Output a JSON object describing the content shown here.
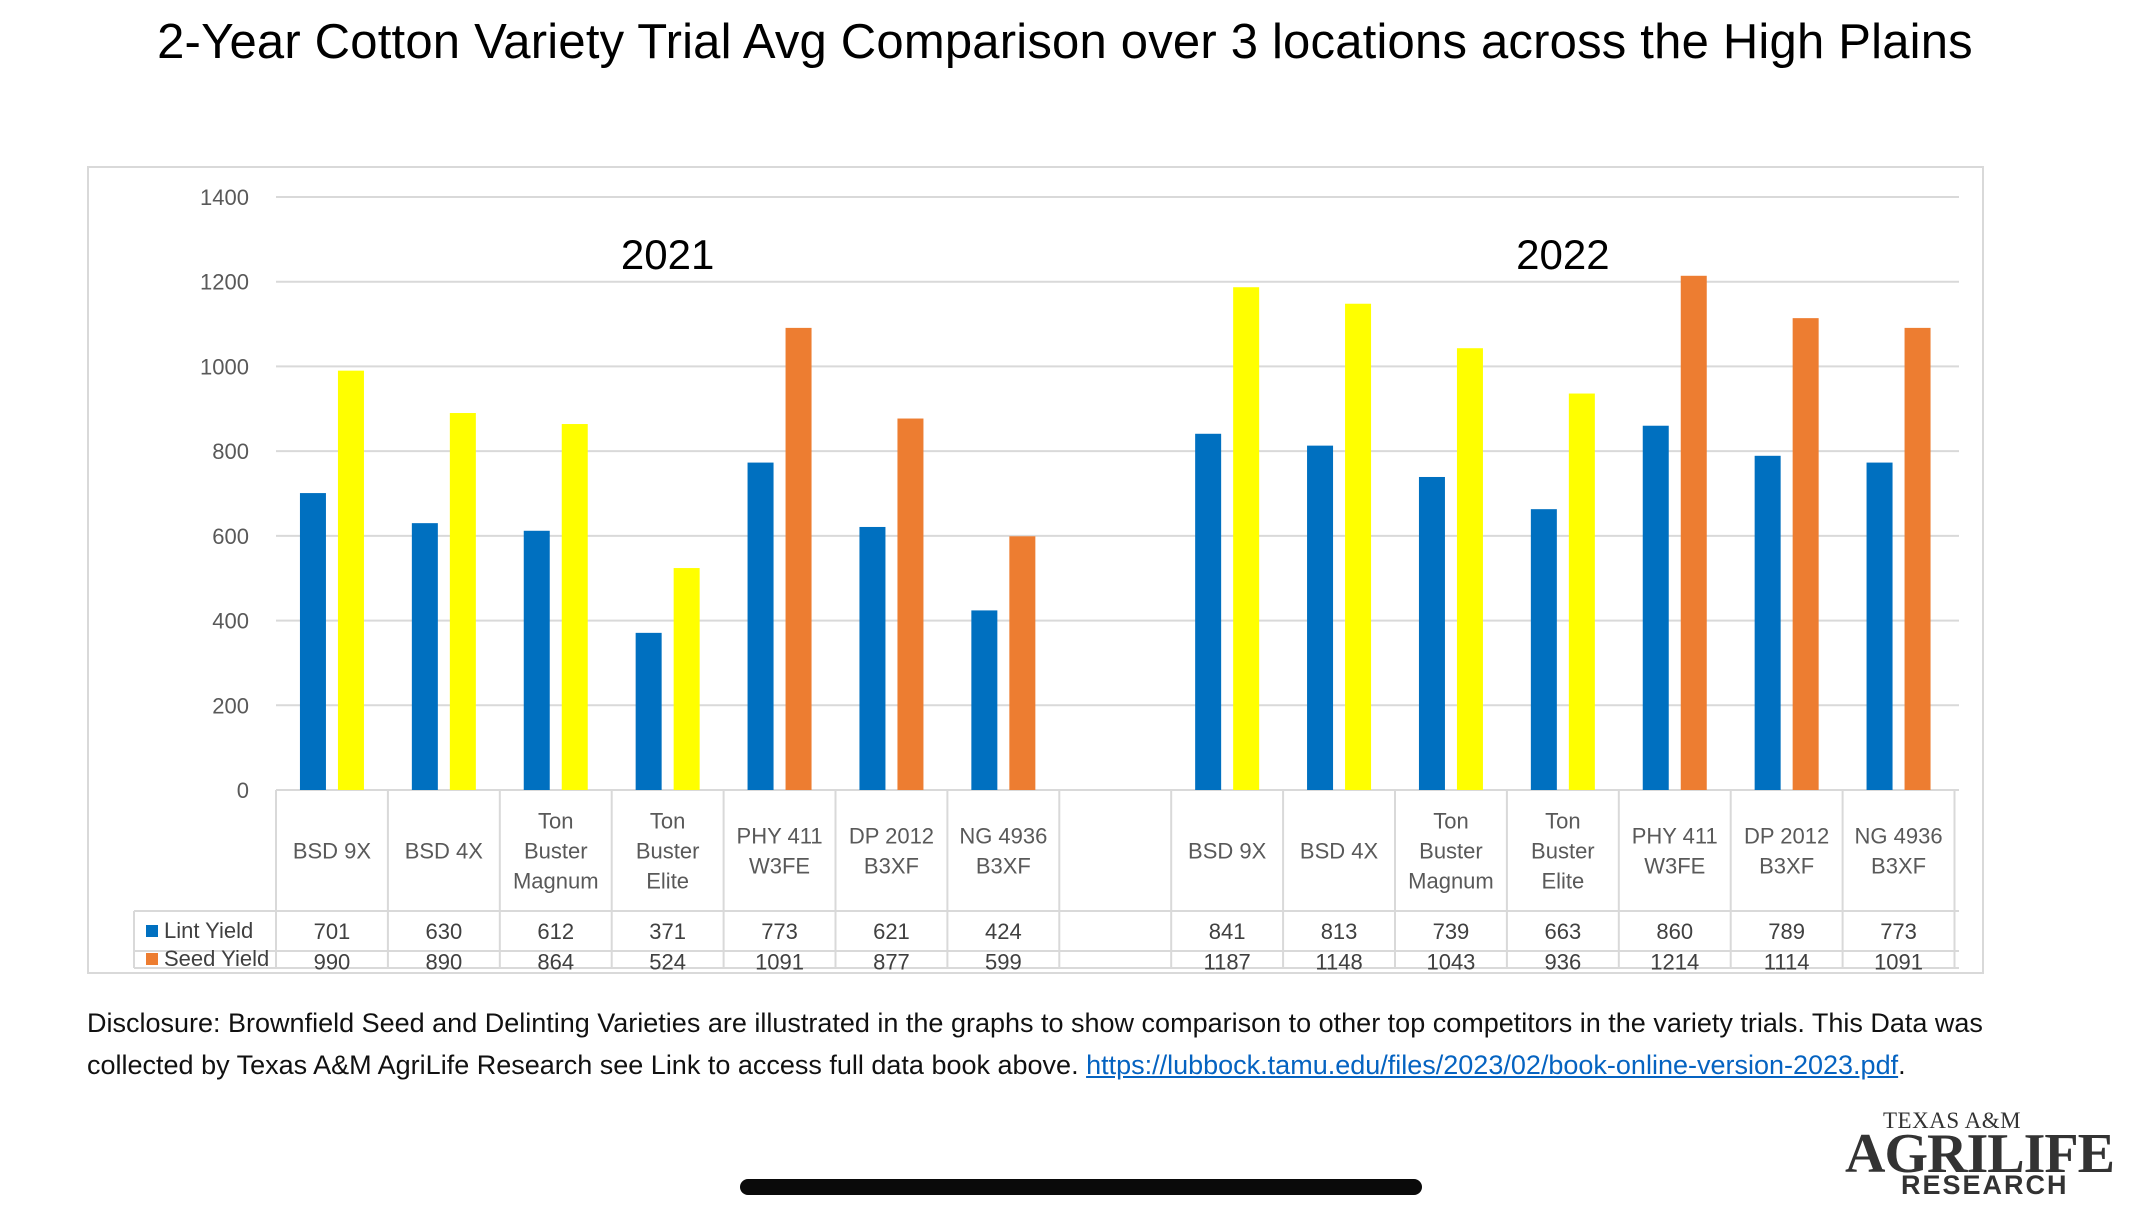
{
  "title": "2-Year Cotton Variety Trial Avg Comparison over 3 locations across the High Plains",
  "chart_data": {
    "type": "bar",
    "title": "2-Year Cotton Variety Trial Avg Comparison over 3 locations across the High Plains",
    "ylim": [
      0,
      1400
    ],
    "yticks": [
      0,
      200,
      400,
      600,
      800,
      1000,
      1200,
      1400
    ],
    "grid": true,
    "groups": [
      {
        "year": "2021",
        "categories": [
          [
            "BSD 9X"
          ],
          [
            "BSD 4X"
          ],
          [
            "Ton",
            "Buster",
            "Magnum"
          ],
          [
            "Ton",
            "Buster",
            "Elite"
          ],
          [
            "PHY 411",
            "W3FE"
          ],
          [
            "DP 2012",
            "B3XF"
          ],
          [
            "NG 4936",
            "B3XF"
          ]
        ],
        "lint": [
          701,
          630,
          612,
          371,
          773,
          621,
          424
        ],
        "seed": [
          990,
          890,
          864,
          524,
          1091,
          877,
          599
        ]
      },
      {
        "year": "2022",
        "categories": [
          [
            "BSD 9X"
          ],
          [
            "BSD 4X"
          ],
          [
            "Ton",
            "Buster",
            "Magnum"
          ],
          [
            "Ton",
            "Buster",
            "Elite"
          ],
          [
            "PHY 411",
            "W3FE"
          ],
          [
            "DP 2012",
            "B3XF"
          ],
          [
            "NG 4936",
            "B3XF"
          ]
        ],
        "lint": [
          841,
          813,
          739,
          663,
          860,
          789,
          773
        ],
        "seed": [
          1187,
          1148,
          1043,
          936,
          1214,
          1114,
          1091
        ]
      }
    ],
    "seed_highlight": [
      true,
      true,
      true,
      true,
      false,
      false,
      false
    ],
    "series": [
      {
        "name": "Lint Yield",
        "color": "#0070c0"
      },
      {
        "name": "Seed Yield",
        "color": "#ed7d31"
      }
    ],
    "seed_highlight_color": "#ffff00"
  },
  "disclosure": {
    "text": "Disclosure: Brownfield Seed and Delinting Varieties are illustrated in the graphs to show comparison to other top competitors in the variety trials. This Data was collected by Texas A&M AgriLife Research see Link to access full data book above. ",
    "link": "https://lubbock.tamu.edu/files/2023/02/book-online-version-2023.pdf",
    "end": "."
  },
  "logo": {
    "line1": "TEXAS A&M",
    "line2": "AGRILIFE",
    "line3": "RESEARCH"
  }
}
